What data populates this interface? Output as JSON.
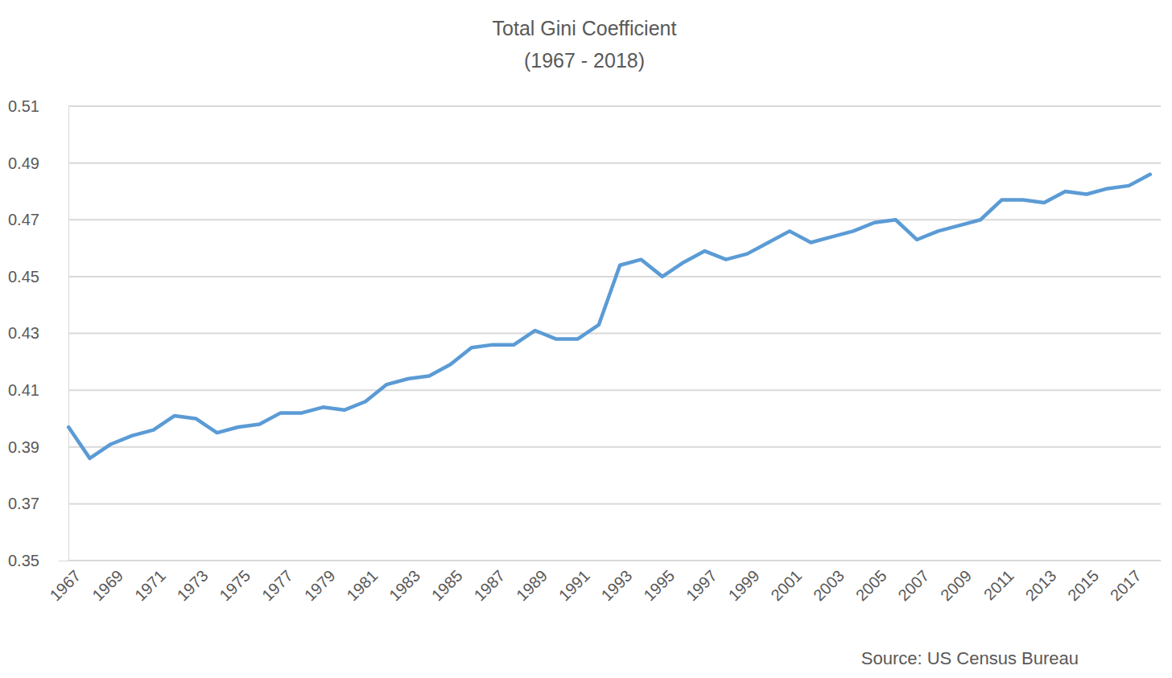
{
  "chart_data": {
    "type": "line",
    "title": "Total Gini Coefficient",
    "subtitle": "(1967 - 2018)",
    "annotations": [
      "Source: US Census Bureau"
    ],
    "categories": [
      "1967",
      null,
      "1969",
      null,
      "1971",
      null,
      "1973",
      null,
      "1975",
      null,
      "1977",
      null,
      "1979",
      null,
      "1981",
      null,
      "1983",
      null,
      "1985",
      null,
      "1987",
      null,
      "1989",
      null,
      "1991",
      null,
      "1993",
      null,
      "1995",
      null,
      "1997",
      null,
      "1999",
      null,
      "2001",
      null,
      "2003",
      null,
      "2005",
      null,
      "2007",
      null,
      "2009",
      null,
      "2011",
      null,
      "2013",
      null,
      "2015",
      null,
      "2017",
      null
    ],
    "values": [
      0.397,
      0.386,
      0.391,
      0.394,
      0.396,
      0.401,
      0.4,
      0.395,
      0.397,
      0.398,
      0.402,
      0.402,
      0.404,
      0.403,
      0.406,
      0.412,
      0.414,
      0.415,
      0.419,
      0.425,
      0.426,
      0.426,
      0.431,
      0.428,
      0.428,
      0.433,
      0.454,
      0.456,
      0.45,
      0.455,
      0.459,
      0.456,
      0.458,
      0.462,
      0.466,
      0.462,
      0.464,
      0.466,
      0.469,
      0.47,
      0.463,
      0.466,
      0.468,
      0.47,
      0.477,
      0.477,
      0.476,
      0.48,
      0.479,
      0.481,
      0.482,
      0.486
    ],
    "color": "#5b9bd5",
    "ylim": [
      0.35,
      0.51
    ],
    "yticks": [
      0.35,
      0.37,
      0.39,
      0.41,
      0.43,
      0.45,
      0.47,
      0.49,
      0.51
    ],
    "grid": true
  }
}
